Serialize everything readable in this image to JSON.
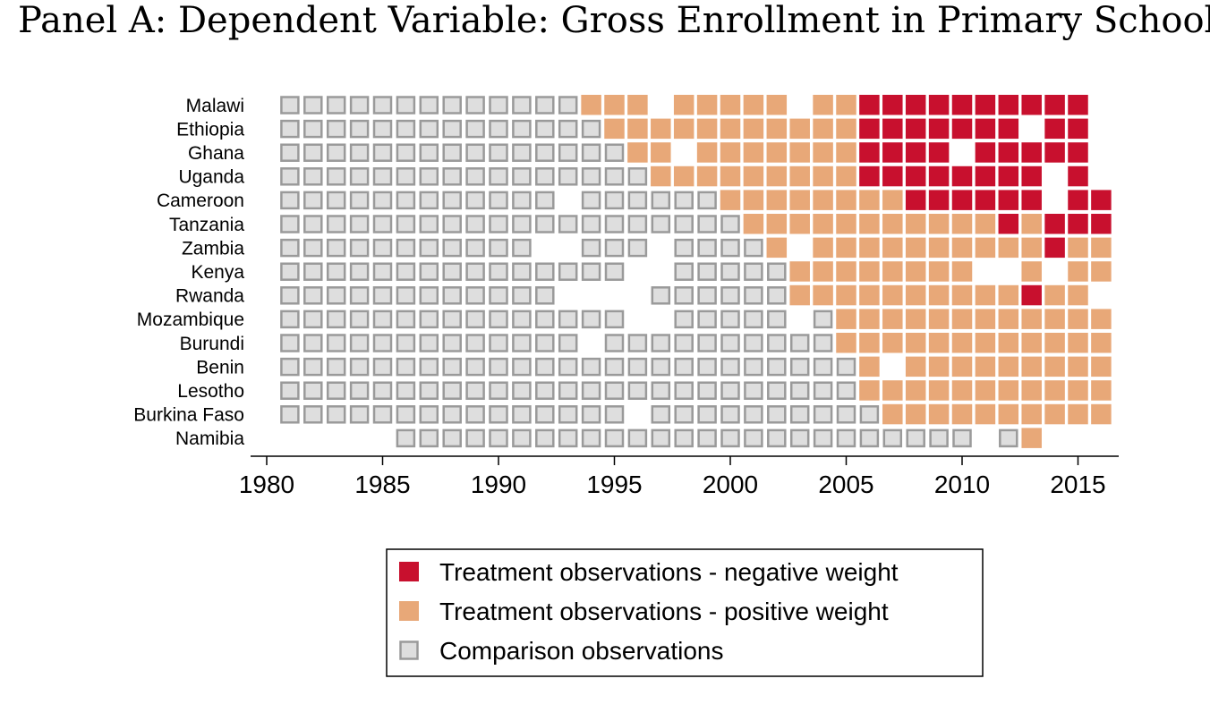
{
  "title": "Panel A: Dependent Variable: Gross Enrollment in Primary School",
  "colors": {
    "negative": "#c8102e",
    "positive": "#e8a878",
    "comparison_fill": "#dedede",
    "comparison_stroke": "#9a9a9a"
  },
  "chart_data": {
    "type": "heatmap",
    "title": "Panel A: Dependent Variable: Gross Enrollment in Primary School",
    "xlabel": "",
    "ylabel": "",
    "xlim": [
      1980,
      2016
    ],
    "x_ticks": [
      1980,
      1985,
      1990,
      1995,
      2000,
      2005,
      2010,
      2015
    ],
    "legend_placement": "bottom-center",
    "legend": [
      {
        "key": "N",
        "label": "Treatment observations - negative weight"
      },
      {
        "key": "P",
        "label": "Treatment observations - positive weight"
      },
      {
        "key": "C",
        "label": "Comparison observations"
      }
    ],
    "cell_legend": {
      "C": "Comparison observations",
      "P": "Treatment observations - positive weight",
      "N": "Treatment observations - negative weight",
      ".": "no observation"
    },
    "rows": [
      {
        "country": "Malawi",
        "start_year": 1981,
        "cells": "CCCCCCCCCCCCCPPP.PPPPP.PPNNNNNNNNNN"
      },
      {
        "country": "Ethiopia",
        "start_year": 1981,
        "cells": "CCCCCCCCCCCCCCPPPPPPPPPPPNNNNNNN.NN"
      },
      {
        "country": "Ghana",
        "start_year": 1981,
        "cells": "CCCCCCCCCCCCCCCPP.PPPPPPPNNNN.NNNNN"
      },
      {
        "country": "Uganda",
        "start_year": 1981,
        "cells": "CCCCCCCCCCCCCCCCPPPPPPPPPNNNNNNNN.N"
      },
      {
        "country": "Cameroon",
        "start_year": 1981,
        "cells": "CCCCCCCCCCCC.CCCCCCPPPPPPPPNNNNNN.NN"
      },
      {
        "country": "Tanzania",
        "start_year": 1981,
        "cells": "CCCCCCCCCCCCCCCCCCCCPPPPPPPPPPPNPNNN"
      },
      {
        "country": "Zambia",
        "start_year": 1981,
        "cells": "CCCCCCCCCCC..CCC.CCCCP.PPPPPPPPPPNPP"
      },
      {
        "country": "Kenya",
        "start_year": 1981,
        "cells": "CCCCCCCCCCCCCCC..CCCCCPPPPPPPP..P.PP"
      },
      {
        "country": "Rwanda",
        "start_year": 1981,
        "cells": "CCCCCCCCCCCC....CCCCCCPPPPPPPPPPNPP"
      },
      {
        "country": "Mozambique",
        "start_year": 1981,
        "cells": "CCCCCCCCCCCCCCC..CCCCC.CPPPPPPPPPPPP"
      },
      {
        "country": "Burundi",
        "start_year": 1981,
        "cells": "CCCCCCCCCCCCC.CCCCCCCCCCPPPPPPPPPPPP"
      },
      {
        "country": "Benin",
        "start_year": 1981,
        "cells": "CCCCCCCCCCCCCCCCCCCCCCCCCP.PPPPPPPPP"
      },
      {
        "country": "Lesotho",
        "start_year": 1981,
        "cells": "CCCCCCCCCCCCCCCCCCCCCCCCCPPPPPPPPPPP"
      },
      {
        "country": "Burkina Faso",
        "start_year": 1981,
        "cells": "CCCCCCCCCCCCCCC.CCCCCCCCCCPPPPPPPPPP"
      },
      {
        "country": "Namibia",
        "start_year": 1986,
        "cells": "CCCCCCCCCCCCCCCCCCCCCCCCC.CP"
      }
    ]
  }
}
